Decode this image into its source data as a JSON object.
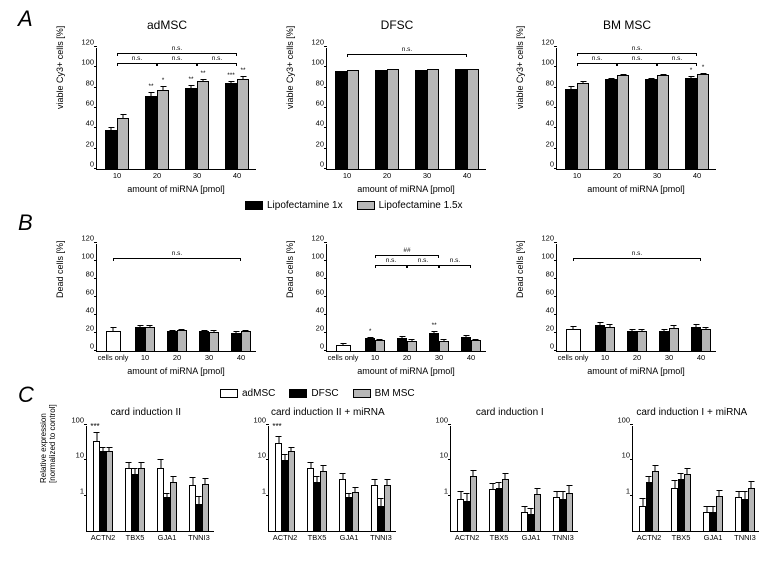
{
  "colors": {
    "black": "#000000",
    "gray": "#b7b7b7",
    "white": "#ffffff"
  },
  "panelLabels": {
    "A": "A",
    "B": "B",
    "C": "C"
  },
  "legendAB": {
    "left": "Lipofectamine 1x",
    "right": "Lipofectamine 1.5x"
  },
  "legendC": {
    "a": "adMSC",
    "b": "DFSC",
    "c": "BM MSC"
  },
  "rowA": {
    "ylabel": "viable Cy3+ cells [%]",
    "xlabel": "amount of miRNA [pmol]",
    "ylim": [
      0,
      120
    ],
    "ytick_step": 20,
    "charts": [
      {
        "title": "adMSC",
        "categories": [
          "10",
          "20",
          "30",
          "40"
        ],
        "series": [
          {
            "color": "black",
            "values": [
              38,
              72,
              80,
              85
            ],
            "errs": [
              4,
              5,
              4,
              3
            ],
            "sig": [
              "",
              "**",
              "**",
              "***"
            ]
          },
          {
            "color": "gray",
            "values": [
              50,
              78,
              87,
              89
            ],
            "errs": [
              5,
              5,
              3,
              3
            ],
            "sig": [
              "",
              "*",
              "**",
              "**"
            ]
          }
        ],
        "sigLines": [
          {
            "from": 0,
            "to": 1,
            "y": 103,
            "label": "n.s."
          },
          {
            "from": 1,
            "to": 2,
            "y": 103,
            "label": "n.s."
          },
          {
            "from": 2,
            "to": 3,
            "y": 103,
            "label": "n.s."
          },
          {
            "from": 0,
            "to": 3,
            "y": 113,
            "label": "n.s."
          }
        ]
      },
      {
        "title": "DFSC",
        "categories": [
          "10",
          "20",
          "30",
          "40"
        ],
        "series": [
          {
            "color": "black",
            "values": [
              96,
              97,
              97,
              98
            ],
            "errs": [
              1,
              1,
              1,
              1
            ],
            "sig": [
              "",
              "",
              "",
              ""
            ]
          },
          {
            "color": "gray",
            "values": [
              97,
              98,
              98,
              98
            ],
            "errs": [
              1,
              1,
              1,
              1
            ],
            "sig": [
              "",
              "",
              "",
              ""
            ]
          }
        ],
        "sigLines": [
          {
            "from": 0,
            "to": 3,
            "y": 112,
            "label": "n.s."
          }
        ]
      },
      {
        "title": "BM MSC",
        "categories": [
          "10",
          "20",
          "30",
          "40"
        ],
        "series": [
          {
            "color": "black",
            "values": [
              79,
              89,
              89,
              90
            ],
            "errs": [
              4,
              2,
              2,
              2
            ],
            "sig": [
              "",
              "",
              "",
              "*"
            ]
          },
          {
            "color": "gray",
            "values": [
              85,
              92,
              92,
              93
            ],
            "errs": [
              3,
              2,
              2,
              2
            ],
            "sig": [
              "",
              "",
              "",
              "*"
            ]
          }
        ],
        "sigLines": [
          {
            "from": 0,
            "to": 1,
            "y": 103,
            "label": "n.s."
          },
          {
            "from": 1,
            "to": 2,
            "y": 103,
            "label": "n.s."
          },
          {
            "from": 2,
            "to": 3,
            "y": 103,
            "label": "n.s."
          },
          {
            "from": 0,
            "to": 3,
            "y": 113,
            "label": "n.s."
          }
        ]
      }
    ]
  },
  "rowB": {
    "ylabel": "Dead cells [%]",
    "xlabel": "amount of miRNA [pmol]",
    "ylim": [
      0,
      120
    ],
    "ytick_step": 20,
    "charts": [
      {
        "categories": [
          "cells only",
          "10",
          "20",
          "30",
          "40"
        ],
        "series": [
          {
            "color": "white",
            "values": [
              22,
              null,
              null,
              null,
              null
            ],
            "errs": [
              6,
              0,
              0,
              0,
              0
            ],
            "sig": [
              "",
              "",
              "",
              "",
              ""
            ]
          },
          {
            "color": "black",
            "values": [
              null,
              27,
              22,
              22,
              20
            ],
            "errs": [
              0,
              3,
              3,
              3,
              3
            ],
            "sig": [
              "",
              "",
              "",
              "",
              ""
            ]
          },
          {
            "color": "gray",
            "values": [
              null,
              27,
              23,
              21,
              22
            ],
            "errs": [
              0,
              3,
              3,
              3,
              3
            ],
            "sig": [
              "",
              "",
              "",
              "",
              ""
            ]
          }
        ],
        "sigLines": [
          {
            "from": 0,
            "to": 4,
            "y": 102,
            "label": "n.s."
          }
        ]
      },
      {
        "categories": [
          "cells only",
          "10",
          "20",
          "30",
          "40"
        ],
        "series": [
          {
            "color": "white",
            "values": [
              7,
              null,
              null,
              null,
              null
            ],
            "errs": [
              3,
              0,
              0,
              0,
              0
            ],
            "sig": [
              "",
              "",
              "",
              "",
              ""
            ]
          },
          {
            "color": "black",
            "values": [
              null,
              14,
              15,
              20,
              16
            ],
            "errs": [
              0,
              3,
              3,
              3,
              3
            ],
            "sig": [
              "",
              "*",
              "",
              "**",
              ""
            ]
          },
          {
            "color": "gray",
            "values": [
              null,
              12,
              11,
              11,
              12
            ],
            "errs": [
              0,
              3,
              3,
              3,
              3
            ],
            "sig": [
              "",
              "",
              "",
              "",
              ""
            ]
          }
        ],
        "sigLines": [
          {
            "from": 1,
            "to": 2,
            "y": 95,
            "label": "n.s."
          },
          {
            "from": 2,
            "to": 3,
            "y": 95,
            "label": "n.s."
          },
          {
            "from": 3,
            "to": 4,
            "y": 95,
            "label": "n.s."
          },
          {
            "from": 1,
            "to": 3,
            "y": 106,
            "label": "##"
          }
        ]
      },
      {
        "categories": [
          "cells only",
          "10",
          "20",
          "30",
          "40"
        ],
        "series": [
          {
            "color": "white",
            "values": [
              25,
              null,
              null,
              null,
              null
            ],
            "errs": [
              4,
              0,
              0,
              0,
              0
            ],
            "sig": [
              "",
              "",
              "",
              "",
              ""
            ]
          },
          {
            "color": "black",
            "values": [
              null,
              29,
              22,
              22,
              27
            ],
            "errs": [
              0,
              4,
              4,
              4,
              4
            ],
            "sig": [
              "",
              "",
              "",
              "",
              ""
            ]
          },
          {
            "color": "gray",
            "values": [
              null,
              27,
              22,
              26,
              24
            ],
            "errs": [
              0,
              4,
              4,
              4,
              4
            ],
            "sig": [
              "",
              "",
              "",
              "",
              ""
            ]
          }
        ],
        "sigLines": [
          {
            "from": 0,
            "to": 4,
            "y": 102,
            "label": "n.s."
          }
        ]
      }
    ]
  },
  "rowC": {
    "ylabel": "Relative expression\n[normalized to control]",
    "genes": [
      "ACTN2",
      "TBX5",
      "GJA1",
      "TNNI3"
    ],
    "ylim": [
      0.1,
      100
    ],
    "yticks": [
      1,
      10,
      100
    ],
    "charts": [
      {
        "title": "card induction II",
        "sigTop": "***",
        "series": [
          {
            "color": "white",
            "values": [
              35,
              6,
              6,
              2
            ],
            "errs": [
              0.3,
              0.2,
              0.3,
              0.25
            ]
          },
          {
            "color": "black",
            "values": [
              18,
              4,
              0.9,
              0.6
            ],
            "errs": [
              0.15,
              0.2,
              0.15,
              0.25
            ]
          },
          {
            "color": "gray",
            "values": [
              18,
              6,
              2.5,
              2.2
            ],
            "errs": [
              0.15,
              0.2,
              0.2,
              0.2
            ]
          }
        ]
      },
      {
        "title": "card induction II + miRNA",
        "sigTop": "***",
        "series": [
          {
            "color": "white",
            "values": [
              30,
              6,
              3,
              2
            ],
            "errs": [
              0.25,
              0.2,
              0.2,
              0.2
            ]
          },
          {
            "color": "black",
            "values": [
              10,
              2.5,
              0.9,
              0.5
            ],
            "errs": [
              0.2,
              0.2,
              0.15,
              0.25
            ]
          },
          {
            "color": "gray",
            "values": [
              18,
              5,
              1.3,
              2
            ],
            "errs": [
              0.15,
              0.2,
              0.15,
              0.2
            ]
          }
        ]
      },
      {
        "title": "card induction I",
        "sigTop": "",
        "series": [
          {
            "color": "white",
            "values": [
              0.8,
              1.5,
              0.35,
              0.9
            ],
            "errs": [
              0.25,
              0.2,
              0.2,
              0.2
            ]
          },
          {
            "color": "black",
            "values": [
              0.7,
              1.6,
              0.3,
              0.8
            ],
            "errs": [
              0.25,
              0.2,
              0.2,
              0.25
            ]
          },
          {
            "color": "gray",
            "values": [
              3.5,
              3,
              1.1,
              1.2
            ],
            "errs": [
              0.2,
              0.2,
              0.2,
              0.25
            ]
          }
        ]
      },
      {
        "title": "card induction I + miRNA",
        "sigTop": "",
        "series": [
          {
            "color": "white",
            "values": [
              0.5,
              1.7,
              0.35,
              0.9
            ],
            "errs": [
              0.25,
              0.25,
              0.2,
              0.2
            ]
          },
          {
            "color": "black",
            "values": [
              2.5,
              3,
              0.35,
              0.8
            ],
            "errs": [
              0.2,
              0.2,
              0.2,
              0.25
            ]
          },
          {
            "color": "gray",
            "values": [
              5,
              4,
              1,
              1.7
            ],
            "errs": [
              0.2,
              0.2,
              0.2,
              0.2
            ]
          }
        ]
      }
    ]
  }
}
